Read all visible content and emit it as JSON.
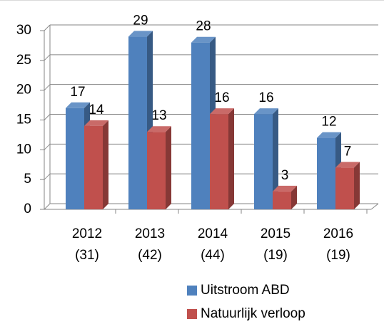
{
  "chart_data": {
    "type": "bar3d",
    "categories": [
      "2012\n(31)",
      "2013\n(42)",
      "2014\n(44)",
      "2015\n(19)",
      "2016\n(19)"
    ],
    "series": [
      {
        "name": "Uitstroom ABD",
        "color": "#4f81bd",
        "values": [
          17,
          29,
          28,
          16,
          12
        ]
      },
      {
        "name": "Natuurlijk verloop",
        "color": "#c0504d",
        "values": [
          14,
          13,
          16,
          3,
          7
        ]
      }
    ],
    "ylim": [
      0,
      30
    ],
    "yticks": [
      0,
      5,
      10,
      15,
      20,
      25,
      30
    ],
    "grid": true,
    "legend": "bottom"
  }
}
